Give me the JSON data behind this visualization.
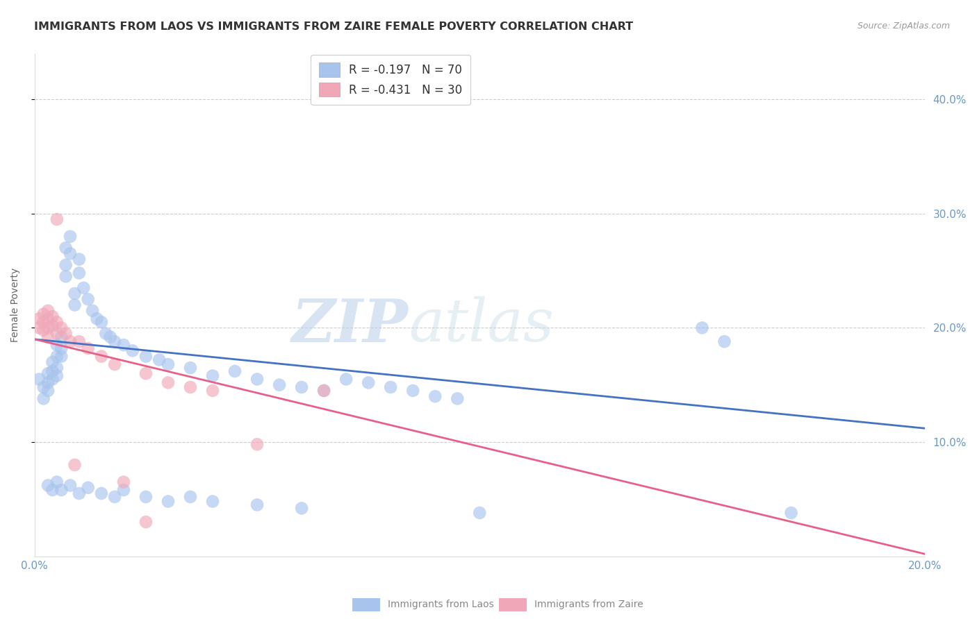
{
  "title": "IMMIGRANTS FROM LAOS VS IMMIGRANTS FROM ZAIRE FEMALE POVERTY CORRELATION CHART",
  "source": "Source: ZipAtlas.com",
  "ylabel": "Female Poverty",
  "xlim": [
    0.0,
    0.2
  ],
  "ylim": [
    0.0,
    0.44
  ],
  "legend_entries": [
    {
      "label": "R = -0.197   N = 70",
      "color": "#a8c4ed"
    },
    {
      "label": "R = -0.431   N = 30",
      "color": "#f0a8b8"
    }
  ],
  "laos_color": "#a8c4ed",
  "zaire_color": "#f0a8b8",
  "laos_scatter": [
    [
      0.001,
      0.155
    ],
    [
      0.002,
      0.148
    ],
    [
      0.002,
      0.138
    ],
    [
      0.003,
      0.16
    ],
    [
      0.003,
      0.152
    ],
    [
      0.003,
      0.145
    ],
    [
      0.004,
      0.17
    ],
    [
      0.004,
      0.162
    ],
    [
      0.004,
      0.155
    ],
    [
      0.005,
      0.185
    ],
    [
      0.005,
      0.175
    ],
    [
      0.005,
      0.165
    ],
    [
      0.005,
      0.158
    ],
    [
      0.006,
      0.192
    ],
    [
      0.006,
      0.182
    ],
    [
      0.006,
      0.175
    ],
    [
      0.007,
      0.27
    ],
    [
      0.007,
      0.255
    ],
    [
      0.007,
      0.245
    ],
    [
      0.008,
      0.28
    ],
    [
      0.008,
      0.265
    ],
    [
      0.009,
      0.23
    ],
    [
      0.009,
      0.22
    ],
    [
      0.01,
      0.26
    ],
    [
      0.01,
      0.248
    ],
    [
      0.011,
      0.235
    ],
    [
      0.012,
      0.225
    ],
    [
      0.013,
      0.215
    ],
    [
      0.014,
      0.208
    ],
    [
      0.015,
      0.205
    ],
    [
      0.016,
      0.195
    ],
    [
      0.017,
      0.192
    ],
    [
      0.018,
      0.188
    ],
    [
      0.02,
      0.185
    ],
    [
      0.022,
      0.18
    ],
    [
      0.025,
      0.175
    ],
    [
      0.028,
      0.172
    ],
    [
      0.03,
      0.168
    ],
    [
      0.035,
      0.165
    ],
    [
      0.04,
      0.158
    ],
    [
      0.045,
      0.162
    ],
    [
      0.05,
      0.155
    ],
    [
      0.055,
      0.15
    ],
    [
      0.06,
      0.148
    ],
    [
      0.065,
      0.145
    ],
    [
      0.07,
      0.155
    ],
    [
      0.075,
      0.152
    ],
    [
      0.08,
      0.148
    ],
    [
      0.085,
      0.145
    ],
    [
      0.09,
      0.14
    ],
    [
      0.095,
      0.138
    ],
    [
      0.003,
      0.062
    ],
    [
      0.004,
      0.058
    ],
    [
      0.005,
      0.065
    ],
    [
      0.006,
      0.058
    ],
    [
      0.008,
      0.062
    ],
    [
      0.01,
      0.055
    ],
    [
      0.012,
      0.06
    ],
    [
      0.015,
      0.055
    ],
    [
      0.018,
      0.052
    ],
    [
      0.02,
      0.058
    ],
    [
      0.025,
      0.052
    ],
    [
      0.03,
      0.048
    ],
    [
      0.035,
      0.052
    ],
    [
      0.04,
      0.048
    ],
    [
      0.05,
      0.045
    ],
    [
      0.06,
      0.042
    ],
    [
      0.1,
      0.038
    ],
    [
      0.15,
      0.2
    ],
    [
      0.155,
      0.188
    ],
    [
      0.17,
      0.038
    ]
  ],
  "zaire_scatter": [
    [
      0.001,
      0.208
    ],
    [
      0.001,
      0.2
    ],
    [
      0.002,
      0.212
    ],
    [
      0.002,
      0.205
    ],
    [
      0.002,
      0.198
    ],
    [
      0.003,
      0.215
    ],
    [
      0.003,
      0.208
    ],
    [
      0.003,
      0.2
    ],
    [
      0.003,
      0.192
    ],
    [
      0.004,
      0.21
    ],
    [
      0.004,
      0.202
    ],
    [
      0.005,
      0.295
    ],
    [
      0.005,
      0.205
    ],
    [
      0.005,
      0.195
    ],
    [
      0.006,
      0.2
    ],
    [
      0.007,
      0.195
    ],
    [
      0.008,
      0.188
    ],
    [
      0.009,
      0.08
    ],
    [
      0.01,
      0.188
    ],
    [
      0.012,
      0.182
    ],
    [
      0.015,
      0.175
    ],
    [
      0.018,
      0.168
    ],
    [
      0.02,
      0.065
    ],
    [
      0.025,
      0.16
    ],
    [
      0.03,
      0.152
    ],
    [
      0.035,
      0.148
    ],
    [
      0.04,
      0.145
    ],
    [
      0.05,
      0.098
    ],
    [
      0.065,
      0.145
    ],
    [
      0.025,
      0.03
    ]
  ],
  "laos_line_color": "#4472c4",
  "zaire_line_color": "#e8608a",
  "laos_line_x": [
    0.0,
    0.2
  ],
  "laos_line_y": [
    0.19,
    0.112
  ],
  "zaire_line_x": [
    0.0,
    0.2
  ],
  "zaire_line_y": [
    0.19,
    0.002
  ],
  "watermark_zip": "ZIP",
  "watermark_atlas": "atlas",
  "background_color": "#ffffff",
  "grid_color": "#cccccc",
  "tick_color": "#6699cc",
  "title_fontsize": 11.5,
  "axis_label_fontsize": 10,
  "tick_fontsize": 11,
  "source_fontsize": 9,
  "marker_size": 180
}
